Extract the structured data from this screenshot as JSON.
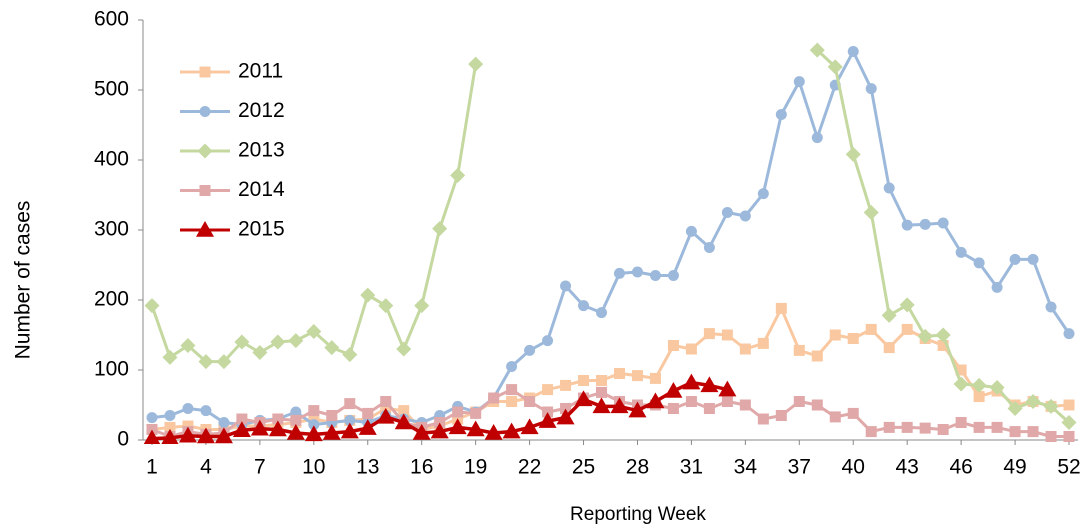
{
  "chart_data": {
    "type": "line",
    "x_label": "Reporting Week",
    "y_label": "Number of cases",
    "x": [
      1,
      2,
      3,
      4,
      5,
      6,
      7,
      8,
      9,
      10,
      11,
      12,
      13,
      14,
      15,
      16,
      17,
      18,
      19,
      20,
      21,
      22,
      23,
      24,
      25,
      26,
      27,
      28,
      29,
      30,
      31,
      32,
      33,
      34,
      35,
      36,
      37,
      38,
      39,
      40,
      41,
      42,
      43,
      44,
      45,
      46,
      47,
      48,
      49,
      50,
      51,
      52
    ],
    "xlim": [
      0.5,
      52.5
    ],
    "xticks": [
      1,
      4,
      7,
      10,
      13,
      16,
      19,
      22,
      25,
      28,
      31,
      34,
      37,
      40,
      43,
      46,
      49,
      52
    ],
    "ylim": [
      0,
      600
    ],
    "yticks": [
      0,
      100,
      200,
      300,
      400,
      500,
      600
    ],
    "grid": false,
    "legend": "top-left",
    "series": [
      {
        "name": "2011",
        "color": "#fac8a0",
        "marker": "square",
        "values": [
          15,
          18,
          20,
          15,
          15,
          20,
          20,
          22,
          25,
          30,
          25,
          28,
          30,
          45,
          42,
          15,
          20,
          30,
          40,
          55,
          55,
          60,
          72,
          78,
          85,
          85,
          95,
          92,
          88,
          135,
          130,
          152,
          150,
          130,
          138,
          188,
          128,
          120,
          150,
          145,
          158,
          132,
          158,
          145,
          135,
          100,
          62,
          70,
          50,
          55,
          48,
          50
        ]
      },
      {
        "name": "2012",
        "color": "#9cb9dc",
        "marker": "circle",
        "values": [
          32,
          35,
          45,
          42,
          25,
          22,
          28,
          30,
          40,
          22,
          25,
          28,
          25,
          35,
          30,
          25,
          35,
          48,
          40,
          60,
          105,
          128,
          142,
          220,
          192,
          182,
          238,
          240,
          235,
          235,
          298,
          275,
          325,
          320,
          352,
          465,
          512,
          432,
          507,
          555,
          502,
          360,
          307,
          308,
          310,
          268,
          253,
          218,
          258,
          258,
          190,
          152
        ]
      },
      {
        "name": "2013",
        "color": "#c4d8a0",
        "marker": "diamond",
        "values": [
          192,
          118,
          135,
          112,
          112,
          140,
          125,
          140,
          142,
          155,
          132,
          122,
          207,
          192,
          130,
          192,
          302,
          378,
          537,
          null,
          null,
          null,
          null,
          null,
          null,
          null,
          null,
          null,
          null,
          null,
          null,
          null,
          null,
          null,
          null,
          null,
          null,
          557,
          533,
          408,
          325,
          178,
          193,
          148,
          150,
          80,
          78,
          75,
          45,
          55,
          48,
          25
        ]
      },
      {
        "name": "2014",
        "color": "#e0a8a8",
        "marker": "square",
        "values": [
          15,
          5,
          12,
          8,
          10,
          30,
          25,
          30,
          28,
          42,
          35,
          52,
          38,
          55,
          25,
          18,
          25,
          40,
          38,
          60,
          72,
          55,
          40,
          45,
          60,
          68,
          55,
          50,
          50,
          45,
          55,
          45,
          55,
          50,
          30,
          35,
          55,
          50,
          33,
          38,
          12,
          18,
          18,
          17,
          15,
          25,
          18,
          18,
          12,
          12,
          5,
          5
        ]
      },
      {
        "name": "2015",
        "color": "#c00000",
        "marker": "triangle",
        "values": [
          2,
          3,
          6,
          5,
          5,
          14,
          16,
          15,
          10,
          8,
          10,
          12,
          17,
          33,
          25,
          10,
          12,
          18,
          15,
          10,
          12,
          18,
          27,
          32,
          58,
          48,
          48,
          42,
          55,
          70,
          82,
          78,
          72,
          null,
          null,
          null,
          null,
          null,
          null,
          null,
          null,
          null,
          null,
          null,
          null,
          null,
          null,
          null,
          null,
          null,
          null,
          null
        ]
      }
    ]
  }
}
